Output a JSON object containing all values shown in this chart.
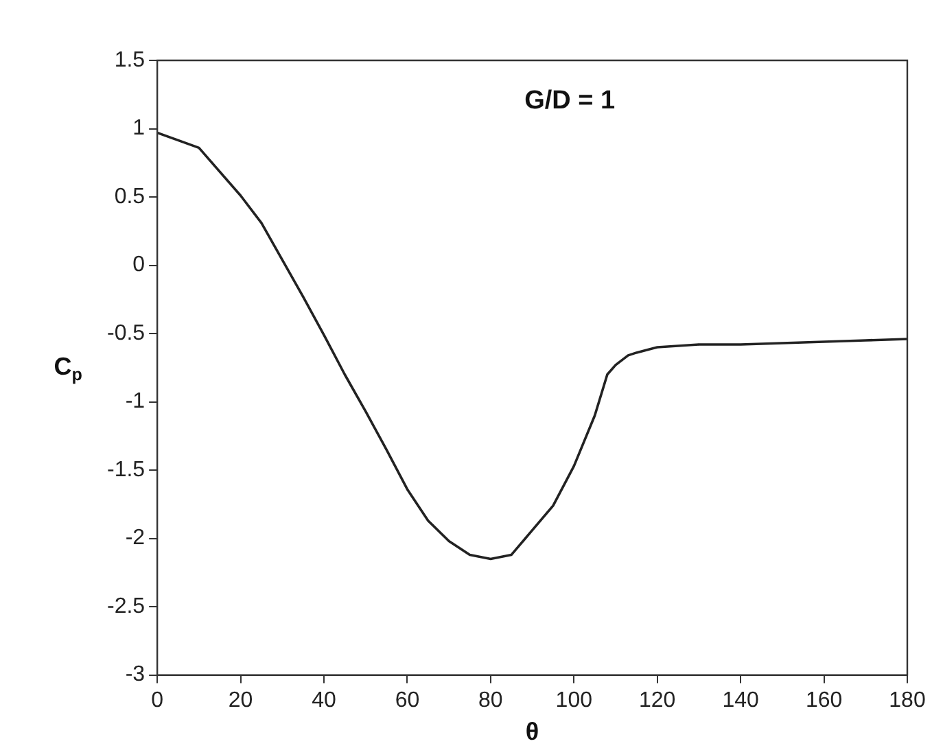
{
  "chart_data": {
    "type": "line",
    "xlabel": "θ",
    "ylabel": "C$_{p}$",
    "annotations": [
      "G/D = 1"
    ],
    "xlim": [
      0,
      180
    ],
    "xticks": [
      0,
      20,
      40,
      60,
      80,
      100,
      120,
      140,
      160,
      180
    ],
    "ylim": [
      -3,
      1.5
    ],
    "yticks": [
      -3,
      -2.5,
      -2,
      -1.5,
      -1,
      -0.5,
      0,
      0.5,
      1,
      1.5
    ],
    "grid": false,
    "legend": false,
    "marker": "none",
    "line_style": "solid",
    "series": [
      {
        "color": "#222222",
        "x": [
          0,
          10,
          20,
          25,
          30,
          35,
          40,
          45,
          50,
          55,
          60,
          65,
          70,
          75,
          80,
          85,
          90,
          95,
          100,
          105,
          108,
          110,
          113,
          115,
          120,
          130,
          140,
          150,
          160,
          170,
          180
        ],
        "values": [
          0.97,
          0.86,
          0.51,
          0.31,
          0.04,
          -0.23,
          -0.51,
          -0.8,
          -1.07,
          -1.35,
          -1.64,
          -1.87,
          -2.02,
          -2.12,
          -2.15,
          -2.12,
          -1.94,
          -1.76,
          -1.47,
          -1.1,
          -0.8,
          -0.73,
          -0.66,
          -0.64,
          -0.6,
          -0.58,
          -0.58,
          -0.57,
          -0.56,
          -0.55,
          -0.54
        ]
      }
    ]
  }
}
